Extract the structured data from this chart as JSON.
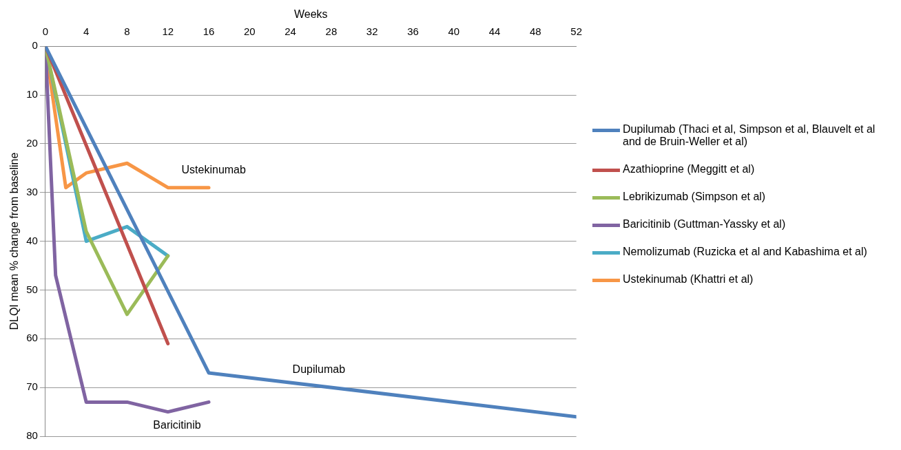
{
  "chart_data": {
    "type": "line",
    "xlabel": "Weeks",
    "ylabel": "DLQI mean % change from baseline",
    "xlim": [
      0,
      52
    ],
    "xticks": [
      0,
      4,
      8,
      12,
      16,
      20,
      24,
      28,
      32,
      36,
      40,
      44,
      48,
      52
    ],
    "ylim": [
      80,
      0
    ],
    "yticks": [
      0,
      10,
      20,
      30,
      40,
      50,
      60,
      70,
      80
    ],
    "grid": "y",
    "legend": "right",
    "marker": "none",
    "line_style": "solid",
    "series": [
      {
        "name": "Dupilumab (Thaci et al, Simpson et al, Blauvelt et al and de Bruin-Weller et al)",
        "color": "#4f81bd",
        "x": [
          0,
          16,
          52
        ],
        "values": [
          0,
          67,
          76
        ]
      },
      {
        "name": "Azathioprine (Meggitt et al)",
        "color": "#c0504d",
        "x": [
          0,
          12
        ],
        "values": [
          0,
          61
        ]
      },
      {
        "name": "Lebrikizumab (Simpson et al)",
        "color": "#9bbb59",
        "x": [
          0,
          4,
          8,
          12
        ],
        "values": [
          0,
          38,
          55,
          43
        ]
      },
      {
        "name": "Baricitinib (Guttman-Yassky et al)",
        "color": "#8064a2",
        "x": [
          0,
          1,
          4,
          8,
          12,
          16
        ],
        "values": [
          0,
          47,
          73,
          73,
          75,
          73
        ]
      },
      {
        "name": "Nemolizumab (Ruzicka et al and Kabashima et al)",
        "color": "#4bacc6",
        "x": [
          0,
          4,
          8,
          12
        ],
        "values": [
          0,
          40,
          37,
          43
        ]
      },
      {
        "name": "Ustekinumab (Khattri et al)",
        "color": "#f79646",
        "x": [
          0,
          2,
          4,
          8,
          12,
          16
        ],
        "values": [
          0,
          29,
          26,
          24,
          29,
          29
        ]
      }
    ],
    "annotations": [
      "Ustekinumab",
      "Dupilumab",
      "Baricitinib"
    ]
  }
}
